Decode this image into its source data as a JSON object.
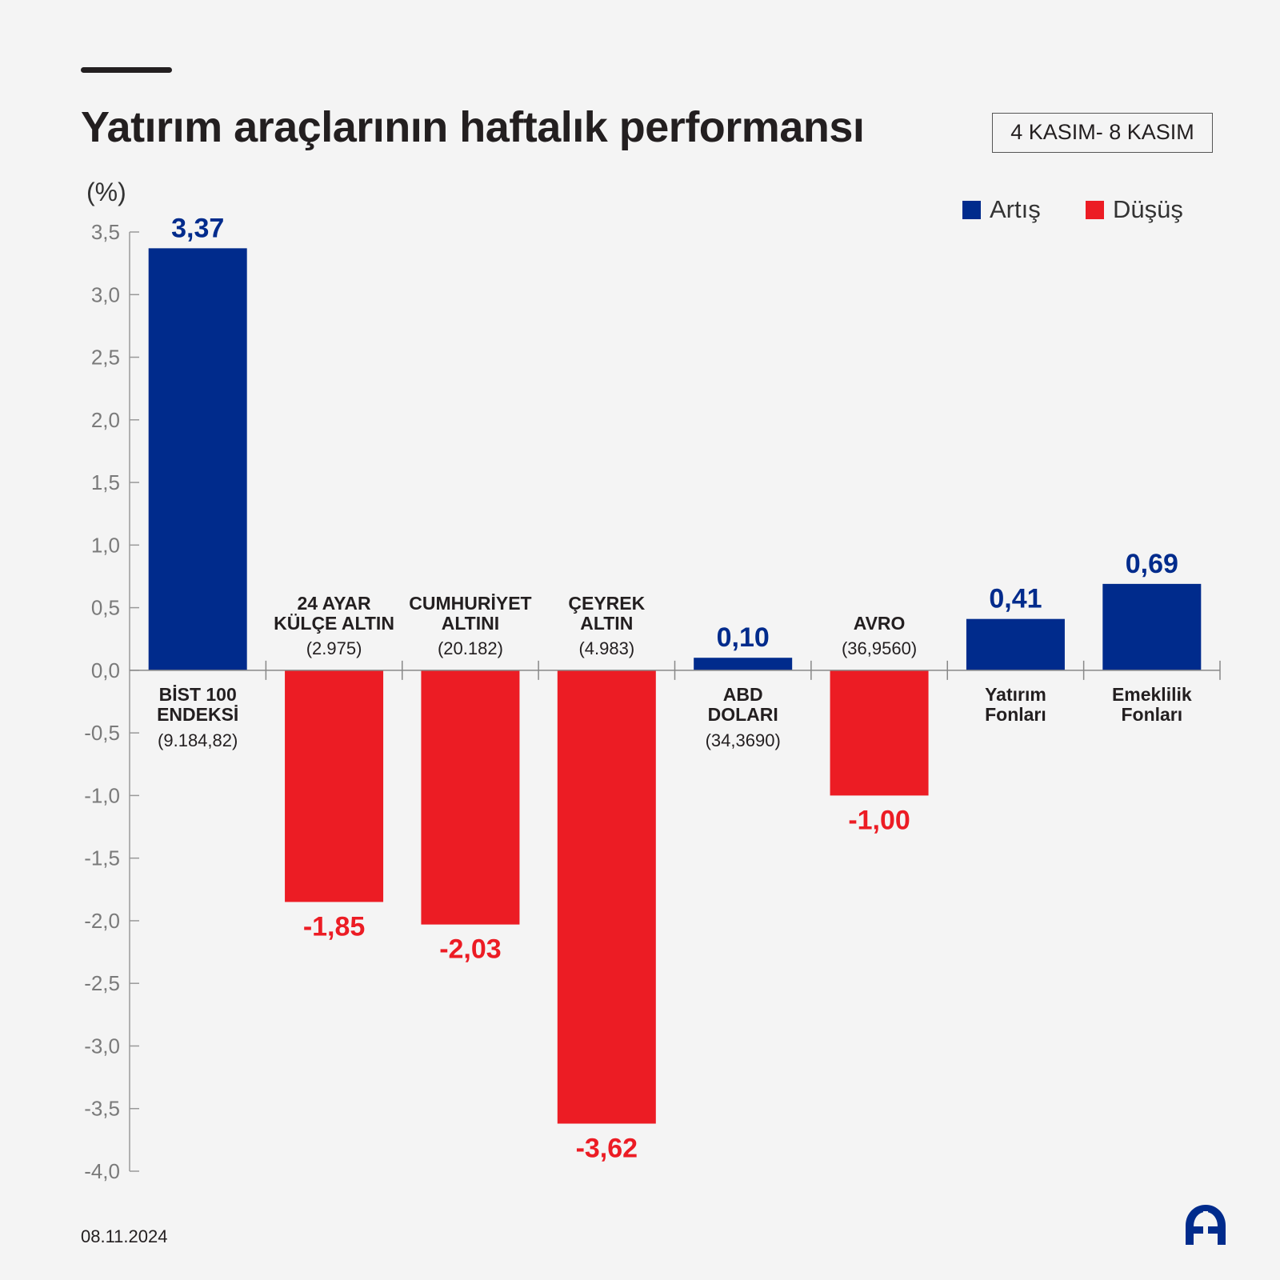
{
  "header": {
    "title": "Yatırım araçlarının haftalık performansı",
    "date_range": "4 KASIM- 8 KASIM"
  },
  "footer": {
    "date": "08.11.2024",
    "logo_text": "AA"
  },
  "colors": {
    "increase": "#002b8c",
    "decrease": "#ec1c24"
  },
  "legend": [
    {
      "label": "Artış",
      "color": "#002b8c"
    },
    {
      "label": "Düşüş",
      "color": "#ec1c24"
    }
  ],
  "chart_data": {
    "type": "bar",
    "ylabel": "(%)",
    "ylim": [
      -4.0,
      3.5
    ],
    "yticks": [
      {
        "value": 3.5,
        "label": "3,5"
      },
      {
        "value": 3.0,
        "label": "3,0"
      },
      {
        "value": 2.5,
        "label": "2,5"
      },
      {
        "value": 2.0,
        "label": "2,0"
      },
      {
        "value": 1.5,
        "label": "1,5"
      },
      {
        "value": 1.0,
        "label": "1,0"
      },
      {
        "value": 0.5,
        "label": "0,5"
      },
      {
        "value": 0.0,
        "label": "0,0"
      },
      {
        "value": -0.5,
        "label": "-0,5"
      },
      {
        "value": -1.0,
        "label": "-1,0"
      },
      {
        "value": -1.5,
        "label": "-1,5"
      },
      {
        "value": -2.0,
        "label": "-2,0"
      },
      {
        "value": -2.5,
        "label": "-2,5"
      },
      {
        "value": -3.0,
        "label": "-3,0"
      },
      {
        "value": -3.5,
        "label": "-3,5"
      },
      {
        "value": -4.0,
        "label": "-4,0"
      }
    ],
    "legend_position": "top-right",
    "grid": false,
    "categories": [
      {
        "name_lines": [
          "BİST 100",
          "ENDEKSİ"
        ],
        "sub": "(9.184,82)",
        "value": 3.37,
        "value_label": "3,37"
      },
      {
        "name_lines": [
          "24 AYAR",
          "KÜLÇE ALTIN"
        ],
        "sub": "(2.975)",
        "value": -1.85,
        "value_label": "-1,85"
      },
      {
        "name_lines": [
          "CUMHURİYET",
          "ALTINI"
        ],
        "sub": "(20.182)",
        "value": -2.03,
        "value_label": "-2,03"
      },
      {
        "name_lines": [
          "ÇEYREK",
          "ALTIN"
        ],
        "sub": "(4.983)",
        "value": -3.62,
        "value_label": "-3,62"
      },
      {
        "name_lines": [
          "ABD",
          "DOLARI"
        ],
        "sub": "(34,3690)",
        "value": 0.1,
        "value_label": "0,10"
      },
      {
        "name_lines": [
          "AVRO"
        ],
        "sub": "(36,9560)",
        "value": -1.0,
        "value_label": "-1,00"
      },
      {
        "name_lines": [
          "Yatırım",
          "Fonları"
        ],
        "sub": "",
        "value": 0.41,
        "value_label": "0,41"
      },
      {
        "name_lines": [
          "Emeklilik",
          "Fonları"
        ],
        "sub": "",
        "value": 0.69,
        "value_label": "0,69"
      }
    ]
  }
}
